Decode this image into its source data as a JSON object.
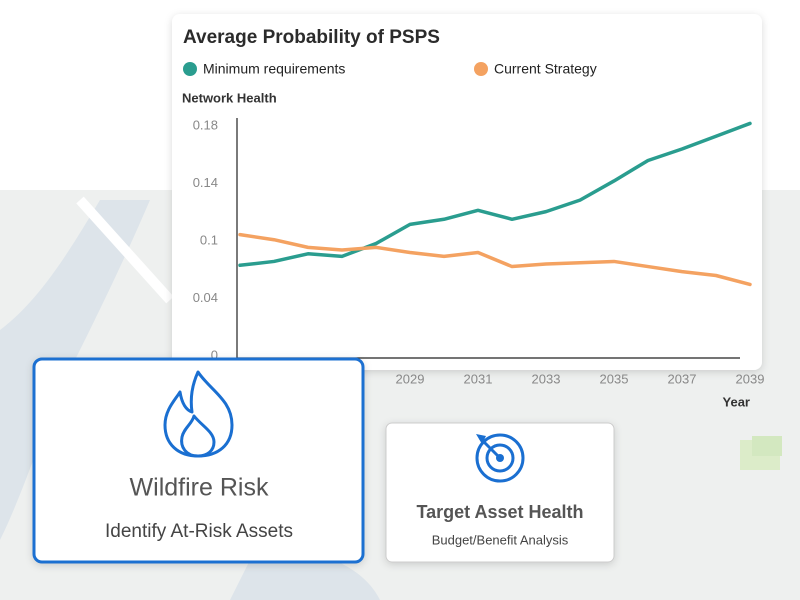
{
  "chart_data": {
    "type": "line",
    "title": "Average Probability of PSPS",
    "y_label": "Network Health",
    "x_label": "Year",
    "x": [
      2024,
      2025,
      2026,
      2027,
      2028,
      2029,
      2030,
      2031,
      2032,
      2033,
      2034,
      2035,
      2036,
      2037,
      2038,
      2039
    ],
    "xlim": [
      2024,
      2039
    ],
    "xticks": [
      2029,
      2031,
      2033,
      2035,
      2037,
      2039
    ],
    "ylim": [
      0,
      0.18
    ],
    "yticks": [
      0,
      {
        "value": 0.045,
        "label": "0.04"
      },
      {
        "value": 0.09,
        "label": "0.1"
      },
      {
        "value": 0.135,
        "label": "0.14"
      },
      0.18
    ],
    "series": [
      {
        "name": "Minimum requirements",
        "color": "#2a9d8f",
        "values": [
          0.071,
          0.074,
          0.08,
          0.078,
          0.088,
          0.103,
          0.107,
          0.114,
          0.107,
          0.113,
          0.122,
          0.137,
          0.153,
          0.162,
          0.172,
          0.182
        ]
      },
      {
        "name": "Current Strategy",
        "color": "#f4a261",
        "values": [
          0.095,
          0.091,
          0.085,
          0.083,
          0.085,
          0.081,
          0.078,
          0.081,
          0.07,
          0.072,
          0.073,
          0.074,
          0.07,
          0.066,
          0.063,
          0.056
        ]
      }
    ]
  },
  "cards": [
    {
      "title": "Wildfire Risk",
      "subtitle": "Identify At-Risk Assets"
    },
    {
      "title": "Target Asset Health",
      "subtitle": "Budget/Benefit Analysis"
    }
  ]
}
